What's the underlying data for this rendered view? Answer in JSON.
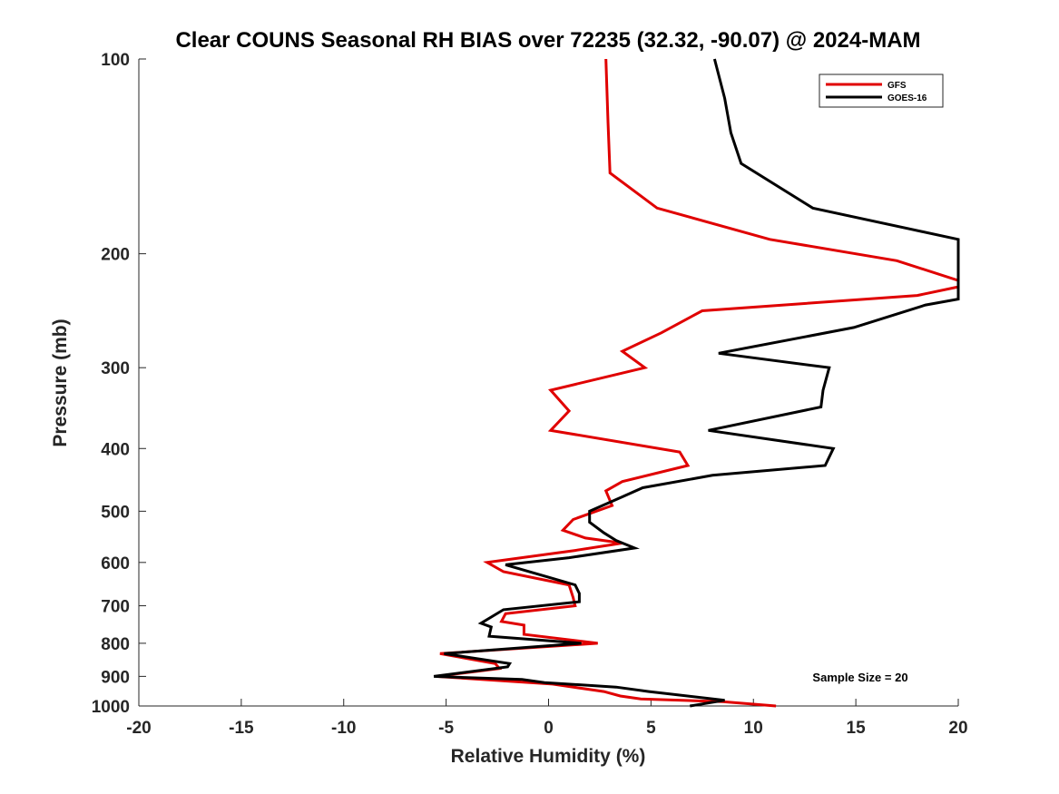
{
  "chart_data": {
    "type": "line",
    "title": "Clear COUNS Seasonal RH BIAS over 72235 (32.32, -90.07) @ 2024-MAM",
    "xlabel": "Relative Humidity (%)",
    "ylabel": "Pressure (mb)",
    "xlim": [
      -20,
      20
    ],
    "ylim": [
      1000,
      100
    ],
    "y_scale": "log",
    "y_reversed": true,
    "grid": false,
    "legend_position": "top-right",
    "xticks": [
      -20,
      -15,
      -10,
      -5,
      0,
      5,
      10,
      15,
      20
    ],
    "xtick_labels": [
      "-20",
      "-15",
      "-10",
      "-5",
      "0",
      "5",
      "10",
      "15",
      "20"
    ],
    "yticks": [
      100,
      200,
      300,
      400,
      500,
      600,
      700,
      800,
      900,
      1000
    ],
    "ytick_labels": [
      "100",
      "200",
      "300",
      "400",
      "500",
      "600",
      "700",
      "800",
      "900",
      "1000"
    ],
    "annotation": "Sample Size = 20",
    "series": [
      {
        "name": "GFS",
        "color": "#e00000",
        "points": [
          [
            2.8,
            100
          ],
          [
            2.9,
            125
          ],
          [
            3.0,
            150
          ],
          [
            5.3,
            170
          ],
          [
            10.8,
            190
          ],
          [
            17.0,
            205
          ],
          [
            20.0,
            220
          ],
          [
            20.0,
            225
          ],
          [
            18.0,
            232
          ],
          [
            7.5,
            245
          ],
          [
            5.5,
            265
          ],
          [
            3.6,
            283
          ],
          [
            4.7,
            300
          ],
          [
            0.1,
            325
          ],
          [
            1.0,
            350
          ],
          [
            0.1,
            375
          ],
          [
            6.4,
            405
          ],
          [
            6.8,
            425
          ],
          [
            3.6,
            450
          ],
          [
            2.8,
            465
          ],
          [
            3.1,
            490
          ],
          [
            1.2,
            515
          ],
          [
            0.7,
            535
          ],
          [
            1.8,
            550
          ],
          [
            3.6,
            560
          ],
          [
            1.3,
            575
          ],
          [
            -3.0,
            600
          ],
          [
            -2.2,
            620
          ],
          [
            1.0,
            650
          ],
          [
            1.2,
            680
          ],
          [
            1.3,
            700
          ],
          [
            -2.1,
            720
          ],
          [
            -2.3,
            740
          ],
          [
            -1.2,
            750
          ],
          [
            -1.2,
            775
          ],
          [
            2.4,
            800
          ],
          [
            -5.3,
            830
          ],
          [
            -2.6,
            860
          ],
          [
            -2.4,
            875
          ],
          [
            -5.5,
            900
          ],
          [
            0.2,
            925
          ],
          [
            2.7,
            950
          ],
          [
            3.5,
            965
          ],
          [
            4.5,
            975
          ],
          [
            8.5,
            985
          ],
          [
            11.1,
            1000
          ]
        ]
      },
      {
        "name": "GOES-16",
        "color": "#000000",
        "points": [
          [
            8.1,
            100
          ],
          [
            8.6,
            115
          ],
          [
            8.9,
            130
          ],
          [
            9.4,
            145
          ],
          [
            12.9,
            170
          ],
          [
            20.0,
            190
          ],
          [
            20.0,
            235
          ],
          [
            18.4,
            240
          ],
          [
            14.9,
            260
          ],
          [
            8.3,
            285
          ],
          [
            13.7,
            300
          ],
          [
            13.4,
            325
          ],
          [
            13.3,
            345
          ],
          [
            7.8,
            375
          ],
          [
            13.9,
            400
          ],
          [
            13.5,
            425
          ],
          [
            8.0,
            440
          ],
          [
            4.6,
            460
          ],
          [
            3.6,
            475
          ],
          [
            2.0,
            500
          ],
          [
            2.0,
            520
          ],
          [
            2.7,
            540
          ],
          [
            3.3,
            555
          ],
          [
            4.2,
            570
          ],
          [
            1.0,
            590
          ],
          [
            -2.1,
            605
          ],
          [
            1.3,
            650
          ],
          [
            1.5,
            670
          ],
          [
            1.5,
            690
          ],
          [
            -2.2,
            710
          ],
          [
            -3.3,
            745
          ],
          [
            -2.8,
            755
          ],
          [
            -2.9,
            780
          ],
          [
            1.6,
            800
          ],
          [
            -5.1,
            830
          ],
          [
            -1.9,
            860
          ],
          [
            -2.0,
            870
          ],
          [
            -5.6,
            900
          ],
          [
            -1.3,
            910
          ],
          [
            -0.2,
            920
          ],
          [
            3.3,
            935
          ],
          [
            4.9,
            950
          ],
          [
            8.6,
            980
          ],
          [
            6.9,
            1000
          ]
        ]
      }
    ]
  }
}
